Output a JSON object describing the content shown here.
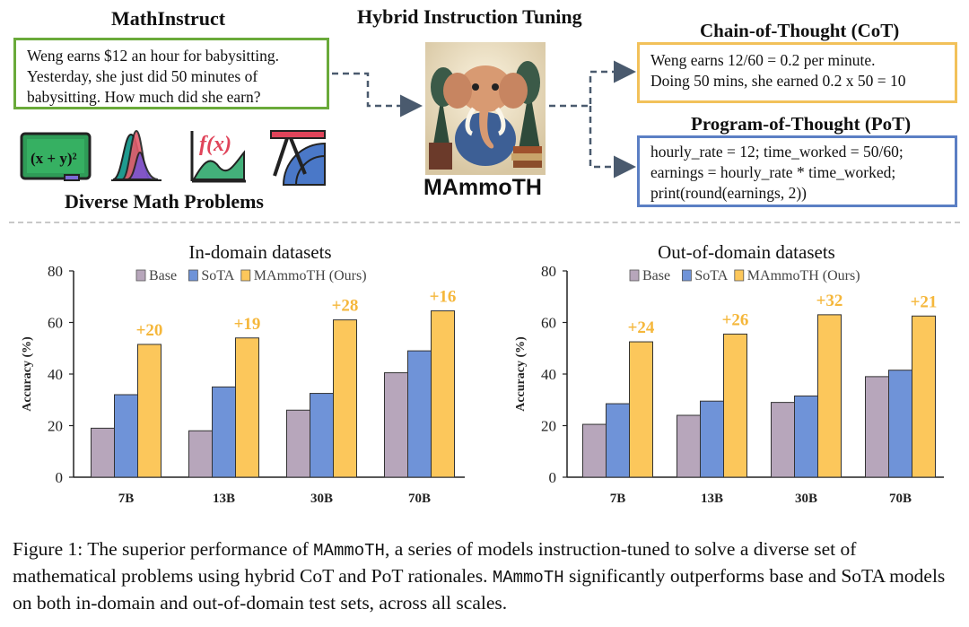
{
  "top": {
    "mathinstruct_title": "MathInstruct",
    "mathinstruct_example": "Weng earns $12 an hour for babysitting. Yesterday, she just did 50 minutes of babysitting. How much did she earn?",
    "problems_label": "Diverse Math Problems",
    "center_title": "Hybrid Instruction Tuning",
    "model_name": "MAmmoTH",
    "cot_title": "Chain-of-Thought (CoT)",
    "cot_lines": [
      "Weng earns 12/60 = 0.2 per minute.",
      "Doing 50 mins, she earned 0.2 x 50 = 10"
    ],
    "pot_title": "Program-of-Thought (PoT)",
    "pot_lines": [
      "hourly_rate = 12; time_worked = 50/60;",
      "earnings = hourly_rate * time_worked;",
      "print(round(earnings, 2))"
    ],
    "icon_formula_text": "(x + y)²",
    "icon_fx_text": "f(x)"
  },
  "colors": {
    "base": "#b7a6bb",
    "sota": "#6f93d8",
    "mammoth": "#fcc75b",
    "delta": "#f5b73b"
  },
  "chart_data": [
    {
      "type": "bar",
      "title": "In-domain datasets",
      "ylabel": "Accuracy (%)",
      "xlabel": "",
      "ylim": [
        0,
        80
      ],
      "yticks": [
        0,
        20,
        40,
        60,
        80
      ],
      "categories": [
        "7B",
        "13B",
        "30B",
        "70B"
      ],
      "legend": [
        "Base",
        "SoTA",
        "MAmmoTH (Ours)"
      ],
      "series": [
        {
          "name": "Base",
          "values": [
            19,
            18,
            26,
            40.5
          ]
        },
        {
          "name": "SoTA",
          "values": [
            32,
            35,
            32.5,
            49
          ]
        },
        {
          "name": "MAmmoTH (Ours)",
          "values": [
            51.5,
            54,
            61,
            64.5
          ]
        }
      ],
      "annotations": [
        "+20",
        "+19",
        "+28",
        "+16"
      ]
    },
    {
      "type": "bar",
      "title": "Out-of-domain datasets",
      "ylabel": "Accuracy (%)",
      "xlabel": "",
      "ylim": [
        0,
        80
      ],
      "yticks": [
        0,
        20,
        40,
        60,
        80
      ],
      "categories": [
        "7B",
        "13B",
        "30B",
        "70B"
      ],
      "legend": [
        "Base",
        "SoTA",
        "MAmmoTH (Ours)"
      ],
      "series": [
        {
          "name": "Base",
          "values": [
            20.5,
            24,
            29,
            39
          ]
        },
        {
          "name": "SoTA",
          "values": [
            28.5,
            29.5,
            31.5,
            41.5
          ]
        },
        {
          "name": "MAmmoTH (Ours)",
          "values": [
            52.5,
            55.5,
            63,
            62.5
          ]
        }
      ],
      "annotations": [
        "+24",
        "+26",
        "+32",
        "+21"
      ]
    }
  ],
  "caption": {
    "lead": "Figure 1: The superior performance of ",
    "code1": "MAmmoTH",
    "mid": ", a series of models instruction-tuned to solve a diverse set of mathematical problems using hybrid CoT and PoT rationales. ",
    "code2": "MAmmoTH",
    "tail": " significantly outperforms base and SoTA models on both in-domain and out-of-domain test sets, across all scales."
  }
}
